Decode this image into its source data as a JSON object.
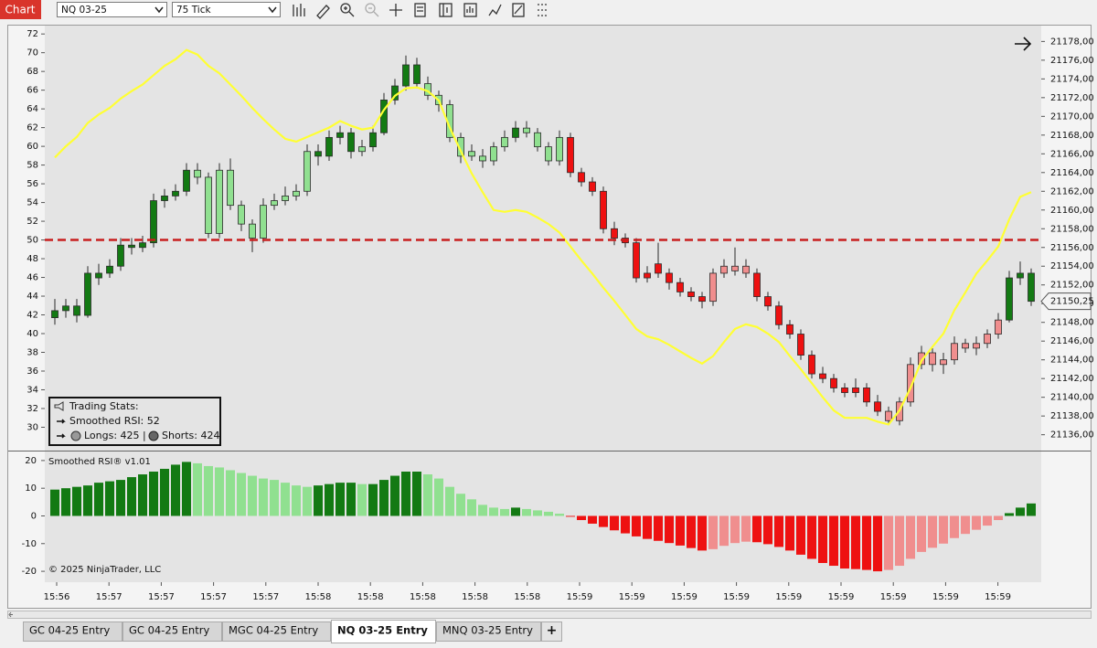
{
  "toolbar": {
    "title": "Chart",
    "instrument": "NQ 03-25",
    "interval": "75 Tick"
  },
  "stats": {
    "title": "Trading Stats:",
    "rsi": "Smoothed RSI: 52",
    "longs": "Longs: 425 |",
    "shorts": "Shorts: 424"
  },
  "tabs": [
    "GC 04-25 Entry",
    "GC 04-25 Entry",
    "MGC 04-25 Entry",
    "NQ 03-25 Entry",
    "MNQ 03-25 Entry"
  ],
  "active_tab": 3,
  "add_tab": "+",
  "chart_data": [
    {
      "type": "candlestick",
      "open": [
        21148.5,
        21149.25,
        21149.75,
        21148.75,
        21152.75,
        21153.25,
        21154,
        21156.25,
        21156,
        21156.5,
        21161,
        21161.5,
        21162,
        21164.25,
        21163.5,
        21157.5,
        21164.25,
        21160.5,
        21158.5,
        21157,
        21160.5,
        21161,
        21161.5,
        21162,
        21166.25,
        21165.75,
        21167.75,
        21168.25,
        21166.25,
        21166.75,
        21168.25,
        21171.75,
        21173.25,
        21175.5,
        21173.5,
        21172.25,
        21171.25,
        21167.75,
        21166.25,
        21165.75,
        21165.25,
        21166.75,
        21167.75,
        21168.75,
        21168.25,
        21166.75,
        21165.25,
        21167.75,
        21164,
        21163,
        21162,
        21158,
        21157,
        21156.5,
        21152.75,
        21154.25,
        21153.25,
        21152.25,
        21151.25,
        21150.75,
        21150.25,
        21153.25,
        21153.5,
        21154,
        21153.25,
        21150.75,
        21149.75,
        21147.75,
        21146.75,
        21144.5,
        21142.5,
        21142,
        21141,
        21140.5,
        21141,
        21139.5,
        21138.5,
        21137.5,
        21139.5,
        21143.5,
        21144.75,
        21143.5,
        21144,
        21145.75,
        21145.25,
        21145.75,
        21146.75,
        21148.25,
        21152.75,
        21153.25
      ],
      "high": [
        21150.5,
        21150.5,
        21150.5,
        21154,
        21154.25,
        21154.75,
        21157,
        21157,
        21157.25,
        21161.75,
        21162.25,
        21162.75,
        21165,
        21165,
        21164,
        21165,
        21165.5,
        21161,
        21159,
        21161.25,
        21161.75,
        21162.5,
        21162.75,
        21167,
        21167,
        21168.5,
        21169,
        21168.75,
        21167.5,
        21169,
        21172.5,
        21174,
        21176.5,
        21176.25,
        21174.25,
        21172.75,
        21171.75,
        21168.25,
        21167,
        21166.5,
        21167.25,
        21168.5,
        21169.5,
        21169.5,
        21168.75,
        21167.25,
        21168.5,
        21168.25,
        21164.5,
        21163.5,
        21162.5,
        21158.75,
        21157.5,
        21157,
        21154,
        21156.5,
        21153.75,
        21152.75,
        21151.75,
        21151.25,
        21153.75,
        21154.75,
        21156,
        21154.75,
        21153.75,
        21151.25,
        21150.25,
        21148.25,
        21147.25,
        21145,
        21143.25,
        21142.5,
        21141.5,
        21142,
        21141.5,
        21140.25,
        21139,
        21140,
        21144.25,
        21145.5,
        21145.25,
        21144.75,
        21146.5,
        21146.25,
        21146.5,
        21147.25,
        21149,
        21153.5,
        21154.5,
        21153.75
      ],
      "low": [
        21147.75,
        21148.5,
        21148,
        21148.5,
        21152,
        21152.75,
        21153.5,
        21155.25,
        21155.5,
        21156,
        21160.25,
        21161,
        21161.5,
        21162.75,
        21157,
        21157,
        21160,
        21157.75,
        21155.5,
        21156.5,
        21160,
        21160.5,
        21161,
        21161.5,
        21164.75,
        21165.25,
        21167,
        21165.5,
        21165.75,
        21166.25,
        21168,
        21171.25,
        21172.75,
        21173,
        21171.75,
        21170.5,
        21167.25,
        21165,
        21165.25,
        21164.5,
        21164.75,
        21166.25,
        21167.25,
        21167.75,
        21166.25,
        21164.75,
        21164.75,
        21163.5,
        21162.5,
        21161.5,
        21157.5,
        21156.25,
        21156,
        21152.25,
        21152.25,
        21152.75,
        21151.5,
        21150.75,
        21150.25,
        21149.5,
        21149.75,
        21152.75,
        21153,
        21152.75,
        21150.25,
        21149.25,
        21147.25,
        21146.25,
        21144,
        21142,
        21141.5,
        21140.5,
        21140,
        21140,
        21139,
        21138,
        21137,
        21137,
        21139,
        21143,
        21142.75,
        21142.5,
        21143.5,
        21144.75,
        21144.5,
        21145.25,
        21146.25,
        21148,
        21152,
        21149.75
      ],
      "close": [
        21149.25,
        21149.75,
        21148.75,
        21153.25,
        21153.25,
        21154,
        21156.25,
        21156,
        21156.5,
        21161,
        21161.5,
        21162,
        21164.25,
        21163.5,
        21157.5,
        21164.25,
        21160.5,
        21158.5,
        21157,
        21160.5,
        21161,
        21161.5,
        21162,
        21166.25,
        21165.75,
        21167.75,
        21168.25,
        21166.25,
        21166.75,
        21168.25,
        21171.75,
        21173.25,
        21175.5,
        21173.5,
        21172.25,
        21171.25,
        21167.75,
        21165.75,
        21165.75,
        21165.25,
        21166.75,
        21167.75,
        21168.75,
        21168.25,
        21166.75,
        21165.25,
        21167.75,
        21164,
        21163,
        21162,
        21158,
        21157,
        21156.5,
        21152.75,
        21153.25,
        21153.25,
        21152.25,
        21151.25,
        21150.75,
        21150.25,
        21153.25,
        21154,
        21154,
        21153.25,
        21150.75,
        21149.75,
        21147.75,
        21146.75,
        21144.5,
        21142.5,
        21142,
        21141,
        21140.5,
        21141,
        21139.5,
        21138.5,
        21137.5,
        21139.5,
        21143.5,
        21144.75,
        21143.5,
        21144,
        21145.75,
        21145.25,
        21145.75,
        21146.75,
        21148.25,
        21152.75,
        21153.25,
        21150.25
      ],
      "candle_axis": "y2",
      "line": {
        "color": "#ffff33",
        "values": [
          58.8,
          60.0,
          61.0,
          62.5,
          63.4,
          64.1,
          65.1,
          65.9,
          66.6,
          67.6,
          68.6,
          69.3,
          70.3,
          69.8,
          68.6,
          67.8,
          66.6,
          65.4,
          64.1,
          62.9,
          61.8,
          60.8,
          60.5,
          61.0,
          61.5,
          62.0,
          62.7,
          62.2,
          61.8,
          62.0,
          63.9,
          65.4,
          66.2,
          66.3,
          65.9,
          64.9,
          62.0,
          59.5,
          57.1,
          55.1,
          53.2,
          53.0,
          53.2,
          53.0,
          52.4,
          51.7,
          50.8,
          49.3,
          47.8,
          46.4,
          44.9,
          43.5,
          42.0,
          40.5,
          39.7,
          39.4,
          38.8,
          38.1,
          37.4,
          36.8,
          37.6,
          39.1,
          40.5,
          41.0,
          40.7,
          40.0,
          39.1,
          37.6,
          36.2,
          34.7,
          33.2,
          31.8,
          31.0,
          31.0,
          31.0,
          30.6,
          30.3,
          31.8,
          34.2,
          37.1,
          38.6,
          40.0,
          42.5,
          44.4,
          46.4,
          47.8,
          49.3,
          52.2,
          54.6,
          55.1
        ]
      },
      "reference_line": 50,
      "reference_color": "#c81e1e",
      "last_price": {
        "value": 21150.25,
        "label": "21150,25"
      },
      "ylim": [
        27.8,
        72.7
      ],
      "yticks": [
        30,
        32,
        34,
        36,
        38,
        40,
        42,
        44,
        46,
        48,
        50,
        52,
        54,
        56,
        58,
        60,
        62,
        64,
        66,
        68,
        70,
        72
      ],
      "y2lim": [
        21134.6,
        21179.5
      ],
      "y2ticks": [
        {
          "value": 21136,
          "label": "21136,00"
        },
        {
          "value": 21138,
          "label": "21138,00"
        },
        {
          "value": 21140,
          "label": "21140,00"
        },
        {
          "value": 21142,
          "label": "21142,00"
        },
        {
          "value": 21144,
          "label": "21144,00"
        },
        {
          "value": 21146,
          "label": "21146,00"
        },
        {
          "value": 21148,
          "label": "21148,00"
        },
        {
          "value": 21150,
          "label": "21150,00"
        },
        {
          "value": 21152,
          "label": "21152,00"
        },
        {
          "value": 21154,
          "label": "21154,00"
        },
        {
          "value": 21156,
          "label": "21156,00"
        },
        {
          "value": 21158,
          "label": "21158,00"
        },
        {
          "value": 21160,
          "label": "21160,00"
        },
        {
          "value": 21162,
          "label": "21162,00"
        },
        {
          "value": 21164,
          "label": "21164,00"
        },
        {
          "value": 21166,
          "label": "21166,00"
        },
        {
          "value": 21168,
          "label": "21168,00"
        },
        {
          "value": 21170,
          "label": "21170,00"
        },
        {
          "value": 21172,
          "label": "21172,00"
        },
        {
          "value": 21174,
          "label": "21174,00"
        },
        {
          "value": 21176,
          "label": "21176,00"
        },
        {
          "value": 21178,
          "label": "21178,00"
        }
      ]
    },
    {
      "type": "bar",
      "title": "Smoothed RSI® v1.01",
      "annotation": "© 2025 NinjaTrader, LLC",
      "values": [
        9.5,
        10,
        10.5,
        11,
        12,
        12.5,
        13,
        14,
        15,
        16,
        17,
        18.5,
        19.5,
        19,
        18,
        17.5,
        16.5,
        15.5,
        14.5,
        13.5,
        13,
        12,
        11,
        10.5,
        11,
        11.5,
        12,
        12,
        11.5,
        11.5,
        13,
        14.5,
        16,
        16,
        15,
        13.5,
        10.5,
        8,
        6,
        4,
        3,
        2.5,
        3,
        2.5,
        2,
        1.5,
        0.8,
        -0.3,
        -1.5,
        -2.8,
        -4,
        -5.2,
        -6.3,
        -7.4,
        -8.3,
        -9,
        -9.8,
        -10.7,
        -11.6,
        -12.5,
        -12,
        -10.8,
        -9.8,
        -9.3,
        -9.5,
        -10.2,
        -11.2,
        -12.5,
        -14,
        -15.5,
        -17,
        -18,
        -19,
        -19.2,
        -19.5,
        -20,
        -19.5,
        -18,
        -15.5,
        -13,
        -11.5,
        -10,
        -8,
        -6.5,
        -5,
        -3.5,
        -1.5,
        1,
        3,
        4.5
      ],
      "colors": {
        "up_strong": "#137a13",
        "up_weak": "#90e090",
        "down_strong": "#ee1111",
        "down_weak": "#f08e8e"
      },
      "ylim": [
        -23.6,
        22.6
      ],
      "yticks": [
        -20,
        -10,
        0,
        10,
        20
      ],
      "xticks": [
        "15:56",
        "15:57",
        "15:57",
        "15:57",
        "15:57",
        "15:58",
        "15:58",
        "15:58",
        "15:58",
        "15:58",
        "15:59",
        "15:59",
        "15:59",
        "15:59",
        "15:59",
        "15:59",
        "15:59",
        "15:59",
        "15:59"
      ]
    }
  ]
}
